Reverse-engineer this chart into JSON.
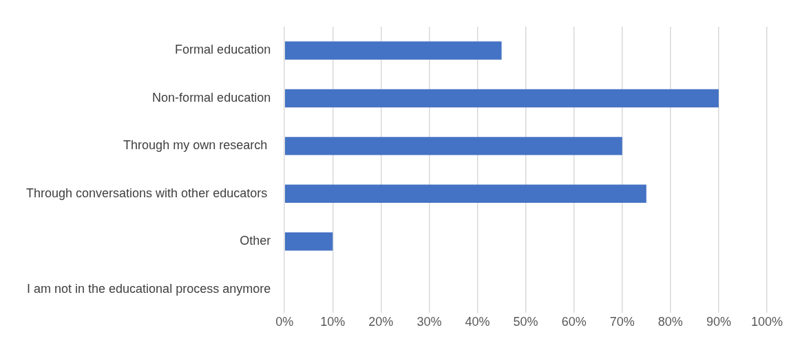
{
  "chart_data": {
    "type": "bar",
    "orientation": "horizontal",
    "categories": [
      "Formal education",
      "Non-formal education",
      "Through my own research ",
      "Through conversations with other educators ",
      "Other",
      "I am not in the educational process anymore"
    ],
    "values": [
      45,
      90,
      70,
      75,
      10,
      0
    ],
    "color": "#4472c4",
    "xlim": [
      0,
      100
    ],
    "xticks": [
      {
        "value": 0,
        "label": "0%"
      },
      {
        "value": 10,
        "label": "10%"
      },
      {
        "value": 20,
        "label": "20%"
      },
      {
        "value": 30,
        "label": "30%"
      },
      {
        "value": 40,
        "label": "40%"
      },
      {
        "value": 50,
        "label": "50%"
      },
      {
        "value": 60,
        "label": "60%"
      },
      {
        "value": 70,
        "label": "70%"
      },
      {
        "value": 80,
        "label": "80%"
      },
      {
        "value": 90,
        "label": "90%"
      },
      {
        "value": 100,
        "label": "100%"
      }
    ],
    "grid": "x",
    "legend": false
  }
}
